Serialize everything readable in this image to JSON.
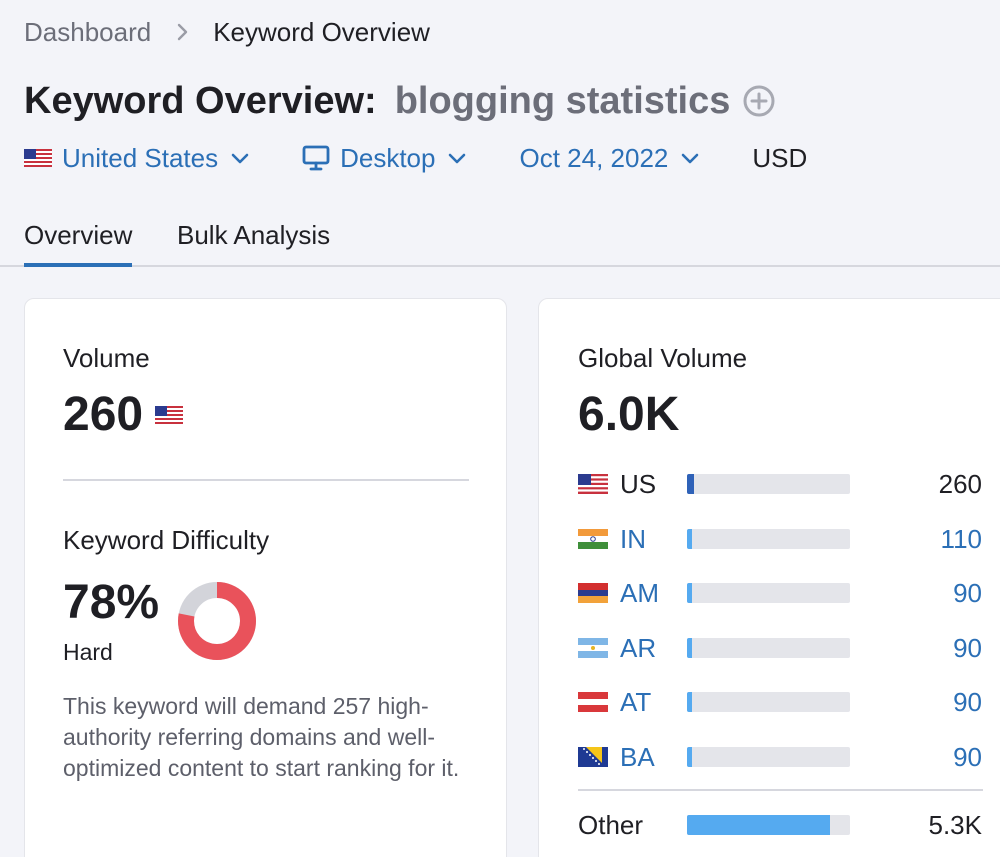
{
  "breadcrumb": {
    "root": "Dashboard",
    "current": "Keyword Overview"
  },
  "title": {
    "main": "Keyword Overview:",
    "keyword": "blogging statistics"
  },
  "filters": {
    "country": "United States",
    "device": "Desktop",
    "date": "Oct 24, 2022",
    "currency": "USD"
  },
  "tabs": [
    "Overview",
    "Bulk Analysis"
  ],
  "volume": {
    "label": "Volume",
    "value": "260"
  },
  "keyword_difficulty": {
    "label": "Keyword Difficulty",
    "value": "78%",
    "level": "Hard",
    "percent": 78,
    "description": "This keyword will demand 257 high-authority referring domains and well-optimized content to start ranking for it."
  },
  "global_volume": {
    "label": "Global Volume",
    "value": "6.0K",
    "countries": [
      {
        "code": "US",
        "value": "260",
        "share": 0.04
      },
      {
        "code": "IN",
        "value": "110",
        "share": 0.02
      },
      {
        "code": "AM",
        "value": "90",
        "share": 0.015
      },
      {
        "code": "AR",
        "value": "90",
        "share": 0.015
      },
      {
        "code": "AT",
        "value": "90",
        "share": 0.015
      },
      {
        "code": "BA",
        "value": "90",
        "share": 0.015
      }
    ],
    "other": {
      "label": "Other",
      "value": "5.3K",
      "share": 0.88
    }
  },
  "colors": {
    "accent": "#2b6fb6",
    "bar_first": "#2f62b8",
    "bar_light": "#55aaf0",
    "kd_red": "#e9525b",
    "kd_track": "#d3d4da"
  }
}
